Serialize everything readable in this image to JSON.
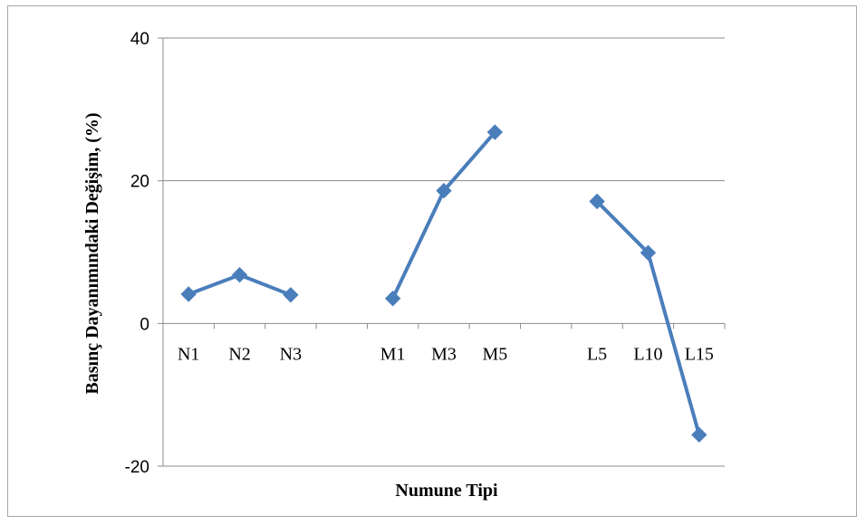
{
  "chart_data": {
    "type": "line",
    "xlabel": "Numune Tipi",
    "ylabel": "Basınç Dayanımındaki Değişim, (%)",
    "ylim": [
      -20,
      40
    ],
    "yticks": [
      "-20",
      "0",
      "20",
      "40"
    ],
    "grid": true,
    "categories": [
      "N1",
      "N2",
      "N3",
      "",
      "M1",
      "M3",
      "M5",
      "",
      "L5",
      "L10",
      "L15"
    ],
    "series": [
      {
        "values": [
          4.1,
          6.8,
          4.0,
          null,
          3.5,
          18.6,
          26.8,
          null,
          17.1,
          9.9,
          -15.6
        ],
        "color": "#4a7ebb",
        "marker": "diamond"
      }
    ]
  }
}
